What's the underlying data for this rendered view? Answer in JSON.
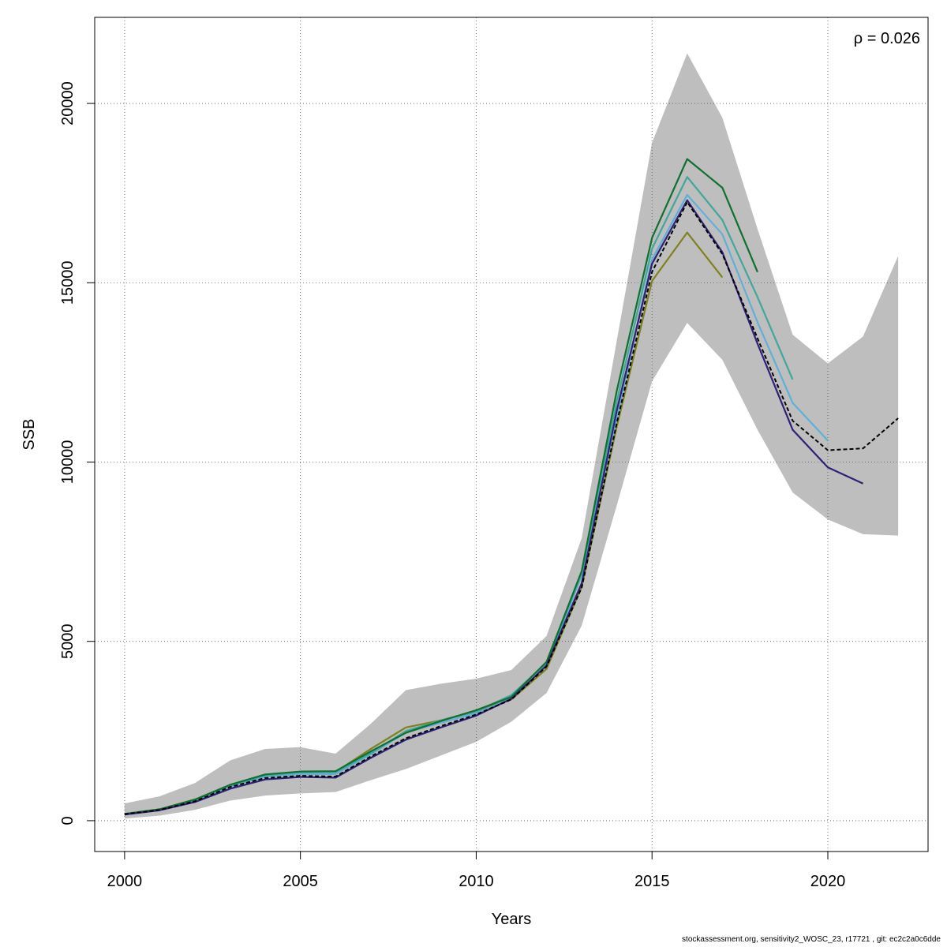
{
  "chart_data": {
    "type": "line",
    "xlabel": "Years",
    "ylabel": "SSB",
    "annotation_prefix": "ρ = ",
    "annotation_value": "0.026",
    "xlim": [
      1999.15,
      2022.85
    ],
    "ylim": [
      -860,
      22400
    ],
    "xticks": [
      2000,
      2005,
      2010,
      2015,
      2020
    ],
    "yticks": [
      0,
      5000,
      10000,
      15000,
      20000
    ],
    "grid": true,
    "band": {
      "color": "#bebebe",
      "x": [
        2000,
        2001,
        2002,
        2003,
        2004,
        2005,
        2006,
        2007,
        2008,
        2009,
        2010,
        2011,
        2012,
        2013,
        2014,
        2015,
        2016,
        2017,
        2018,
        2019,
        2020,
        2021,
        2022
      ],
      "upper": [
        480,
        680,
        1050,
        1680,
        2000,
        2050,
        1870,
        2700,
        3640,
        3820,
        3960,
        4200,
        5150,
        7880,
        13400,
        18900,
        21400,
        19600,
        16500,
        13550,
        12750,
        13500,
        15750
      ],
      "lower": [
        60,
        140,
        300,
        560,
        700,
        760,
        800,
        1130,
        1440,
        1820,
        2200,
        2760,
        3560,
        5440,
        8800,
        12250,
        13880,
        12850,
        10900,
        9150,
        8400,
        7990,
        7950
      ]
    },
    "series": [
      {
        "color": "#808020",
        "width": 2.2,
        "dash": false,
        "x": [
          2000,
          2001,
          2002,
          2003,
          2004,
          2005,
          2006,
          2007,
          2008,
          2009,
          2010,
          2011,
          2012,
          2013,
          2014,
          2015,
          2016,
          2017
        ],
        "values": [
          190,
          300,
          540,
          960,
          1270,
          1360,
          1360,
          2000,
          2600,
          2800,
          3050,
          3380,
          4230,
          6520,
          11000,
          15050,
          16400,
          15150
        ]
      },
      {
        "color": "#5fb0d8",
        "width": 2.2,
        "dash": false,
        "x": [
          2000,
          2001,
          2002,
          2003,
          2004,
          2005,
          2006,
          2007,
          2008,
          2009,
          2010,
          2011,
          2012,
          2013,
          2014,
          2015,
          2016,
          2017,
          2018,
          2019,
          2020
        ],
        "values": [
          180,
          300,
          560,
          950,
          1230,
          1300,
          1300,
          1850,
          2460,
          2730,
          3000,
          3400,
          4320,
          6850,
          11250,
          15650,
          17450,
          16350,
          13900,
          11650,
          10600
        ]
      },
      {
        "color": "#3fa89c",
        "width": 2.2,
        "dash": false,
        "x": [
          2000,
          2001,
          2002,
          2003,
          2004,
          2005,
          2006,
          2007,
          2008,
          2009,
          2010,
          2011,
          2012,
          2013,
          2014,
          2015,
          2016,
          2017,
          2018,
          2019
        ],
        "values": [
          180,
          310,
          570,
          980,
          1260,
          1350,
          1350,
          1880,
          2500,
          2800,
          3050,
          3500,
          4400,
          6900,
          11700,
          15950,
          17950,
          16750,
          14600,
          12300
        ]
      },
      {
        "color": "#0f7030",
        "width": 2.2,
        "dash": false,
        "x": [
          2000,
          2001,
          2002,
          2003,
          2004,
          2005,
          2006,
          2007,
          2008,
          2009,
          2010,
          2011,
          2012,
          2013,
          2014,
          2015,
          2016,
          2017,
          2018
        ],
        "values": [
          190,
          320,
          590,
          1000,
          1290,
          1370,
          1380,
          1930,
          2450,
          2780,
          3080,
          3450,
          4430,
          6960,
          12000,
          16250,
          18450,
          17650,
          15300
        ]
      },
      {
        "color": "#2f2078",
        "width": 2.2,
        "dash": false,
        "x": [
          2000,
          2001,
          2002,
          2003,
          2004,
          2005,
          2006,
          2007,
          2008,
          2009,
          2010,
          2011,
          2012,
          2013,
          2014,
          2015,
          2016,
          2017,
          2018,
          2019,
          2020,
          2021
        ],
        "values": [
          170,
          290,
          520,
          890,
          1150,
          1220,
          1200,
          1750,
          2260,
          2600,
          2930,
          3400,
          4330,
          6620,
          11450,
          15530,
          17300,
          15850,
          13300,
          10900,
          9850,
          9400
        ]
      },
      {
        "color": "#000000",
        "width": 2.0,
        "dash": true,
        "x": [
          2000,
          2001,
          2002,
          2003,
          2004,
          2005,
          2006,
          2007,
          2008,
          2009,
          2010,
          2011,
          2012,
          2013,
          2014,
          2015,
          2016,
          2017,
          2018,
          2019,
          2020,
          2021,
          2022
        ],
        "values": [
          180,
          300,
          540,
          940,
          1190,
          1250,
          1230,
          1790,
          2300,
          2640,
          2960,
          3380,
          4300,
          6500,
          11100,
          15300,
          17250,
          15800,
          13450,
          11150,
          10330,
          10380,
          11220
        ]
      }
    ]
  },
  "footer_text": "stockassessment.org, sensitivity2_WOSC_23, r17721 , git: ec2c2a0c6dde"
}
